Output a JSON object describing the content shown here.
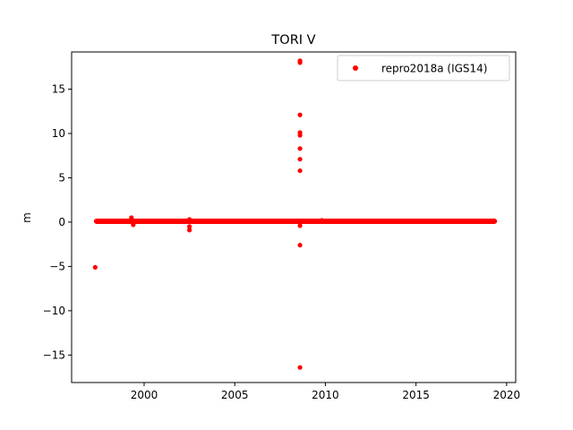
{
  "chart_data": {
    "type": "scatter",
    "title": "TORI V",
    "xlabel": "",
    "ylabel": "m",
    "xlim": [
      1996.0,
      2020.5
    ],
    "ylim": [
      -18.1,
      19.2
    ],
    "xticks": [
      2000,
      2005,
      2010,
      2015,
      2020
    ],
    "yticks": [
      -15,
      -10,
      -5,
      0,
      5,
      10,
      15
    ],
    "grid": false,
    "legend_position": "top-right",
    "series": [
      {
        "name": "repro2018a (IGS14)",
        "color": "#ff0000",
        "marker": "circle",
        "band": {
          "x_start": 1997.3,
          "x_end": 2019.4,
          "y": 0.0
        },
        "points": [
          {
            "x": 1997.3,
            "y": -5.1
          },
          {
            "x": 1999.3,
            "y": 0.5
          },
          {
            "x": 1999.4,
            "y": -0.3
          },
          {
            "x": 2002.5,
            "y": 0.3
          },
          {
            "x": 2002.5,
            "y": -0.5
          },
          {
            "x": 2002.5,
            "y": -0.9
          },
          {
            "x": 2008.6,
            "y": 18.2
          },
          {
            "x": 2008.6,
            "y": 18.0
          },
          {
            "x": 2008.6,
            "y": 12.1
          },
          {
            "x": 2008.6,
            "y": 10.1
          },
          {
            "x": 2008.6,
            "y": 9.8
          },
          {
            "x": 2008.6,
            "y": 8.3
          },
          {
            "x": 2008.6,
            "y": 7.1
          },
          {
            "x": 2008.6,
            "y": 5.8
          },
          {
            "x": 2008.6,
            "y": -0.4
          },
          {
            "x": 2008.6,
            "y": -2.6
          },
          {
            "x": 2008.6,
            "y": -16.4
          },
          {
            "x": 2009.8,
            "y": 0.2
          }
        ]
      }
    ]
  }
}
